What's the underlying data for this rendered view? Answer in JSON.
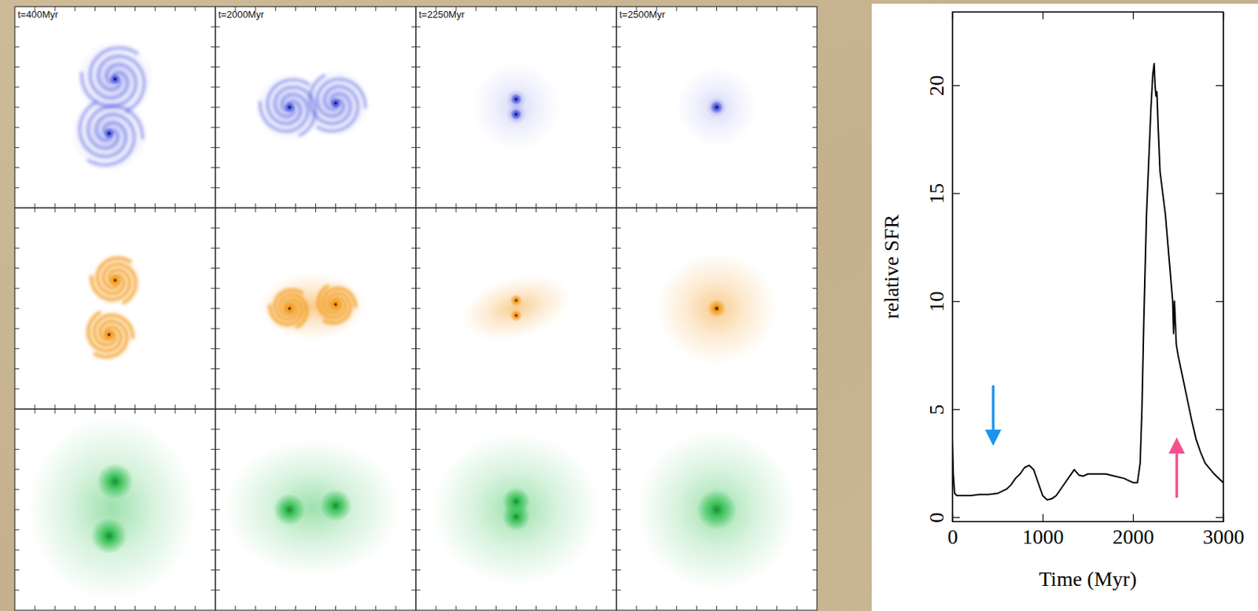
{
  "chart_data": {
    "type": "line",
    "xlabel": "Time (Myr)",
    "ylabel": "relative SFR",
    "xlim": [
      0,
      3000
    ],
    "ylim": [
      -0.2,
      23.4
    ],
    "xticks": [
      0,
      1000,
      2000,
      3000
    ],
    "yticks": [
      0,
      5,
      10,
      15,
      20
    ],
    "color": "#000000",
    "x": [
      0,
      10,
      25,
      50,
      100,
      200,
      300,
      400,
      500,
      600,
      650,
      700,
      750,
      800,
      850,
      900,
      950,
      1000,
      1050,
      1100,
      1150,
      1200,
      1250,
      1300,
      1350,
      1400,
      1450,
      1500,
      1600,
      1700,
      1800,
      1900,
      2000,
      2050,
      2080,
      2100,
      2120,
      2150,
      2180,
      2200,
      2220,
      2235,
      2245,
      2255,
      2265,
      2280,
      2300,
      2330,
      2360,
      2400,
      2420,
      2440,
      2450,
      2460,
      2480,
      2500,
      2550,
      2600,
      2650,
      2700,
      2750,
      2800,
      2900,
      3000
    ],
    "values": [
      3.6,
      2.0,
      1.1,
      1.0,
      1.0,
      1.0,
      1.05,
      1.05,
      1.1,
      1.3,
      1.5,
      1.8,
      2.0,
      2.3,
      2.4,
      2.2,
      1.6,
      1.0,
      0.8,
      0.85,
      1.0,
      1.3,
      1.6,
      1.9,
      2.2,
      1.95,
      1.9,
      2.0,
      2.0,
      2.0,
      1.9,
      1.8,
      1.6,
      1.6,
      2.5,
      5,
      9,
      14,
      17,
      19,
      20.5,
      21,
      20,
      19.5,
      19.7,
      18,
      16,
      15,
      14,
      12,
      11,
      10,
      8.5,
      10,
      8,
      7.5,
      6.5,
      5.5,
      4.5,
      3.6,
      3,
      2.5,
      2,
      1.6
    ],
    "arrows": [
      {
        "x": 452,
        "y_tail": 6.1,
        "y_tip": 3.3,
        "color": "#1b95ec"
      },
      {
        "x": 2485,
        "y_tail": 0.9,
        "y_tip": 3.7,
        "color": "#f4508f"
      }
    ]
  },
  "panels": {
    "labels": [
      "t=400Myr",
      "t=2000Myr",
      "t=2250Myr",
      "t=2500Myr"
    ],
    "rows": [
      {
        "color": "#4a55e0"
      },
      {
        "color": "#f39a1e"
      },
      {
        "color": "#3cc25a"
      }
    ]
  }
}
